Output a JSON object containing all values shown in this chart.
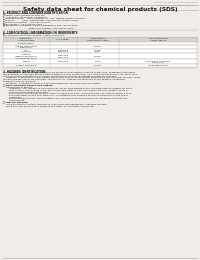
{
  "bg_color": "#f0ede8",
  "header_left": "Product Name: Lithium Ion Battery Cell",
  "header_right_line1": "Substance Number: SBP-049-00010",
  "header_right_line2": "Established / Revision: Dec.7.2010",
  "title": "Safety data sheet for chemical products (SDS)",
  "section1_title": "1. PRODUCT AND COMPANY IDENTIFICATION",
  "section1_items": [
    "・Product name: Lithium Ion Battery Cell",
    "・Product code: Cylindrical-type cell",
    "    (UR18650J, UR18650Z, UR18650A)",
    "・Company name:    Sanyo Electric Co., Ltd., Mobile Energy Company",
    "・Address:          2001, Kamitosaten, Sumoto-City, Hyogo, Japan",
    "・Telephone number:  +81-799-26-4111",
    "・Fax number:  +81-799-26-4129",
    "・Emergency telephone number (Weekdays) +81-799-26-3662",
    "                                  (Night and holiday) +81-799-26-3101"
  ],
  "section2_title": "2. COMPOSITION / INFORMATION ON INGREDIENTS",
  "section2_sub1": "・Substance or preparation: Preparation",
  "section2_sub2": "・Information about the chemical nature of product:",
  "table_headers": [
    "Component\nchemical name",
    "CAS number",
    "Concentration /\nConcentration range",
    "Classification and\nhazard labeling"
  ],
  "table_rows": [
    [
      "Several names",
      "",
      "",
      ""
    ],
    [
      "Lithium cobalt oxide\n(LiMn/CoO4)",
      "-",
      "30-60%",
      ""
    ],
    [
      "Iron\nAluminum",
      "7439-89-6\n7429-90-5",
      "16-25%\n2-6%",
      ""
    ],
    [
      "Graphite\n(Made of graphite-1)\n(All-Mn graphite-1)",
      "7782-42-5\n7782-44-3",
      "10-23%",
      ""
    ],
    [
      "Copper",
      "7440-50-8",
      "0-15%",
      "Sensitization of the skin\ngroup No.2"
    ],
    [
      "Organic electrolyte",
      "-",
      "10-20%",
      "Inflammable liquid"
    ]
  ],
  "section3_title": "3. HAZARDS IDENTIFICATION",
  "section3_para1": "For this battery cell, chemical materials are stored in a hermetically-sealed metal case, designed to withstand\ntemperatures or pressure-temperature conditions during normal use. As a result, during normal use, there is no\nphysical danger of ignition or explosion and thermally-danger of hazardous materials leakage.\n    However, if exposed to a fire, added mechanical shocks, decomposed, ambient electro-chemical ray may cause.\nthe gas release cannot be operated. The battery cell case will be breached of fire-protons, hazardous\nmaterials may be released.\n    Moreover, if heated strongly by the surrounding fire, send gas may be emitted.",
  "section3_bullet1": "・ Most important hazard and effects:",
  "section3_human": "    Human health effects:",
  "section3_human_items": [
    "        Inhalation: The release of the electrolyte has an anaesthesia action and stimulates in respiratory tract.",
    "        Skin contact: The release of the electrolyte stimulates a skin. The electrolyte skin contact causes a",
    "        sore and stimulation on the skin.",
    "        Eye contact: The release of the electrolyte stimulates eyes. The electrolyte eye contact causes a sore",
    "        and stimulation on the eye. Especially, a substance that causes a strong inflammation of the eye is",
    "        contained.",
    "        Environmental effects: Since a battery cell remains in the environment, do not throw out it into the",
    "        environment."
  ],
  "section3_bullet2": "・ Specific hazards:",
  "section3_specific": [
    "    If the electrolyte contacts with water, it will generate detrimental hydrogen fluoride.",
    "    Since the lead electrolyte is inflammable liquid, do not bring close to fire."
  ],
  "text_color": "#1a1a1a",
  "line_color": "#aaaaaa",
  "header_color": "#888888",
  "table_header_bg": "#d8d4cc",
  "table_row_bg": "#ffffff"
}
